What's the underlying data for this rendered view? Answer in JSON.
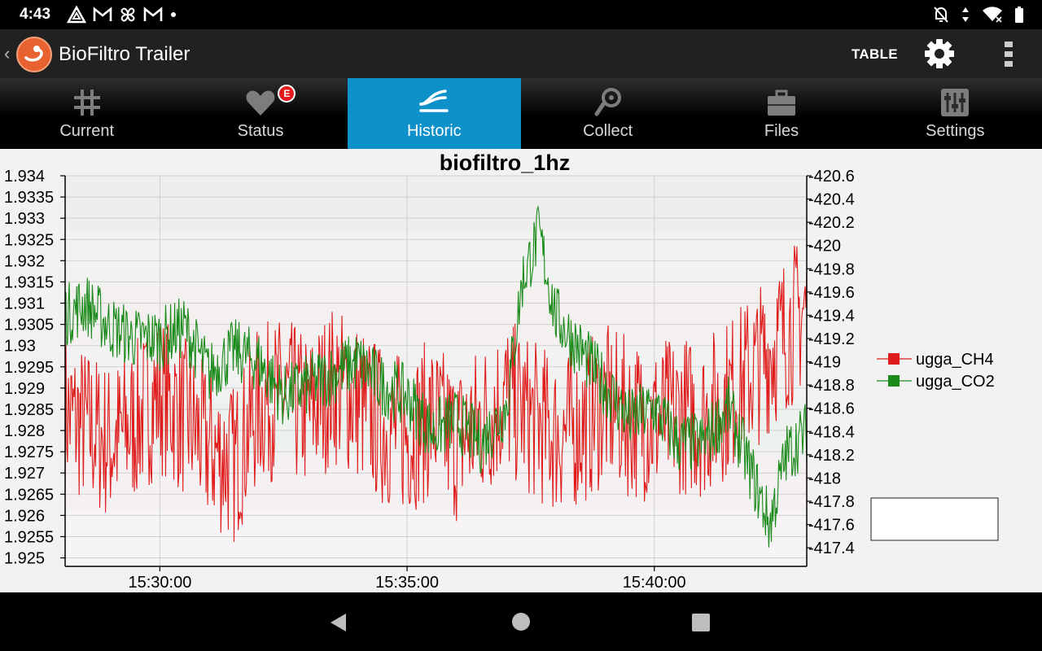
{
  "status_bar": {
    "time": "4:43"
  },
  "app_bar": {
    "title": "BioFiltro Trailer",
    "table_label": "TABLE"
  },
  "tabs": [
    {
      "label": "Current",
      "icon": "grid-icon"
    },
    {
      "label": "Status",
      "icon": "heart-icon",
      "badge": "E"
    },
    {
      "label": "Historic",
      "icon": "historic-icon",
      "active": true
    },
    {
      "label": "Collect",
      "icon": "collect-icon"
    },
    {
      "label": "Files",
      "icon": "briefcase-icon"
    },
    {
      "label": "Settings",
      "icon": "sliders-icon"
    }
  ],
  "colors": {
    "ch4": "#e01b1b",
    "co2": "#1a8a1a",
    "active_tab": "#0e90c8"
  },
  "chart_data": {
    "type": "line",
    "title": "biofiltro_1hz",
    "x_ticks": [
      "15:30:00",
      "15:35:00",
      "15:40:00"
    ],
    "x_range": [
      "15:28:05",
      "15:43:05"
    ],
    "y_left": {
      "ticks": [
        "1.934",
        "1.9335",
        "1.933",
        "1.9325",
        "1.932",
        "1.9315",
        "1.931",
        "1.9305",
        "1.93",
        "1.9295",
        "1.929",
        "1.9285",
        "1.928",
        "1.9275",
        "1.927",
        "1.9265",
        "1.926",
        "1.9255",
        "1.925"
      ],
      "range": [
        1.9248,
        1.934
      ]
    },
    "y_right": {
      "ticks": [
        "420.6",
        "420.4",
        "420.2",
        "420",
        "419.8",
        "419.6",
        "419.4",
        "419.2",
        "419",
        "418.8",
        "418.6",
        "418.4",
        "418.2",
        "418",
        "417.8",
        "417.6",
        "417.4"
      ],
      "range": [
        417.24,
        420.6
      ]
    },
    "legend": {
      "position": "right",
      "entries": [
        "ugga_CH4",
        "ugga_CO2"
      ]
    },
    "series": [
      {
        "name": "ugga_CH4",
        "axis": "left",
        "x": [
          "15:28:05",
          "15:28:30",
          "15:29:00",
          "15:29:30",
          "15:30:00",
          "15:30:30",
          "15:31:00",
          "15:31:30",
          "15:32:00",
          "15:32:30",
          "15:33:00",
          "15:33:30",
          "15:34:00",
          "15:34:30",
          "15:35:00",
          "15:35:30",
          "15:36:00",
          "15:36:30",
          "15:37:00",
          "15:37:30",
          "15:38:00",
          "15:38:30",
          "15:39:00",
          "15:39:30",
          "15:40:00",
          "15:40:30",
          "15:41:00",
          "15:41:30",
          "15:42:00",
          "15:42:30",
          "15:43:05"
        ],
        "values": [
          1.9284,
          1.9281,
          1.9277,
          1.9282,
          1.9289,
          1.9283,
          1.9276,
          1.9272,
          1.9286,
          1.9288,
          1.9284,
          1.9291,
          1.9287,
          1.9281,
          1.9279,
          1.9283,
          1.9277,
          1.9282,
          1.9288,
          1.9283,
          1.9279,
          1.9281,
          1.9286,
          1.9283,
          1.9282,
          1.9284,
          1.9283,
          1.9288,
          1.9294,
          1.9301,
          1.9309
        ]
      },
      {
        "name": "ugga_CO2",
        "axis": "right",
        "x": [
          "15:28:05",
          "15:28:30",
          "15:29:00",
          "15:29:30",
          "15:30:00",
          "15:30:30",
          "15:31:00",
          "15:31:30",
          "15:32:00",
          "15:32:30",
          "15:33:00",
          "15:33:30",
          "15:34:00",
          "15:34:30",
          "15:35:00",
          "15:35:30",
          "15:36:00",
          "15:36:30",
          "15:37:00",
          "15:37:20",
          "15:37:40",
          "15:38:00",
          "15:38:30",
          "15:39:00",
          "15:39:30",
          "15:40:00",
          "15:40:30",
          "15:41:00",
          "15:41:30",
          "15:42:00",
          "15:42:20",
          "15:42:40",
          "15:43:05"
        ],
        "values": [
          419.4,
          419.5,
          419.3,
          419.2,
          419.2,
          419.3,
          418.9,
          419.1,
          419.0,
          418.7,
          418.8,
          418.9,
          419.0,
          418.8,
          418.7,
          418.4,
          418.5,
          418.3,
          418.6,
          419.7,
          420.1,
          419.4,
          419.1,
          418.8,
          418.5,
          418.6,
          418.3,
          418.3,
          418.6,
          418.0,
          417.6,
          418.2,
          418.4
        ]
      }
    ]
  }
}
